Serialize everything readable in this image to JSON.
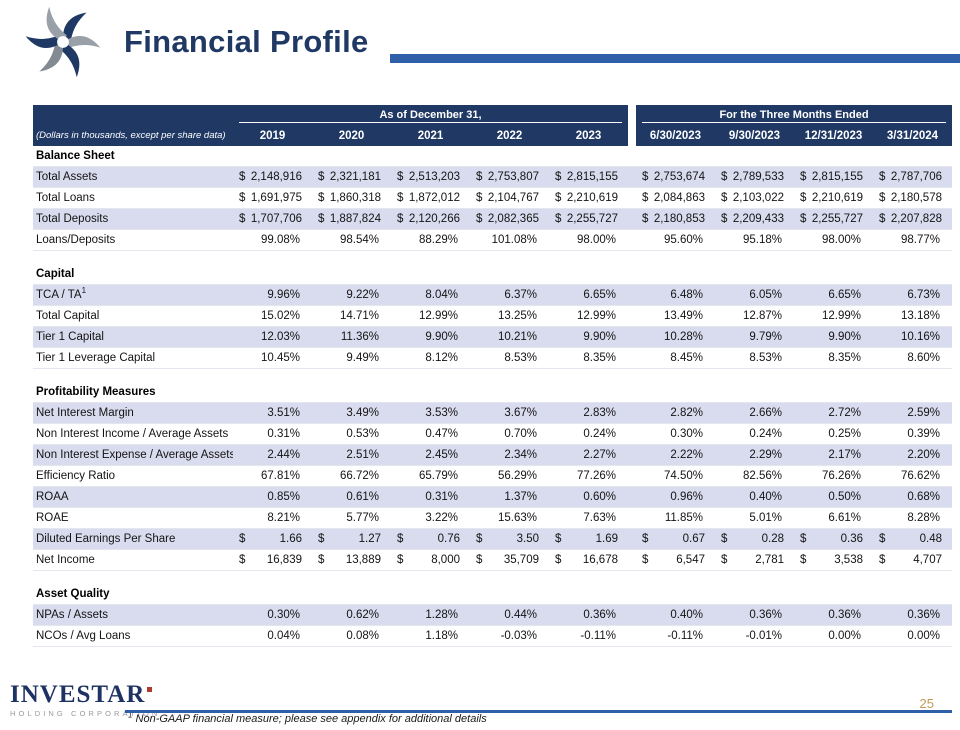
{
  "slide": {
    "title": "Financial Profile",
    "page_number": "25"
  },
  "footer": {
    "logo_text": "INVESTAR",
    "logo_sub": "HOLDING CORPORATION",
    "footnote_sup": "1",
    "footnote_text": "Non-GAAP financial measure; please see appendix for additional details"
  },
  "colors": {
    "header_navy": "#1f3864",
    "accent_blue": "#2e5fa8",
    "row_stripe": "#d9dbee",
    "page_number_gold": "#bf9b56",
    "logo_red": "#b03a2e",
    "logo_gray": "#97999d",
    "logo_navy": "#1e3263"
  },
  "table": {
    "unit_note": "(Dollars in thousands, except per share data)",
    "groups": [
      {
        "label": "As of December 31,",
        "columns": [
          "2019",
          "2020",
          "2021",
          "2022",
          "2023"
        ]
      },
      {
        "label": "For the Three Months Ended",
        "columns": [
          "6/30/2023",
          "9/30/2023",
          "12/31/2023",
          "3/31/2024"
        ]
      }
    ],
    "sections": [
      {
        "name": "Balance Sheet",
        "rows": [
          {
            "label": "Total Assets",
            "format": "dollar",
            "values": [
              "2,148,916",
              "2,321,181",
              "2,513,203",
              "2,753,807",
              "2,815,155",
              "2,753,674",
              "2,789,533",
              "2,815,155",
              "2,787,706"
            ]
          },
          {
            "label": "Total Loans",
            "format": "dollar",
            "values": [
              "1,691,975",
              "1,860,318",
              "1,872,012",
              "2,104,767",
              "2,210,619",
              "2,084,863",
              "2,103,022",
              "2,210,619",
              "2,180,578"
            ]
          },
          {
            "label": "Total Deposits",
            "format": "dollar",
            "values": [
              "1,707,706",
              "1,887,824",
              "2,120,266",
              "2,082,365",
              "2,255,727",
              "2,180,853",
              "2,209,433",
              "2,255,727",
              "2,207,828"
            ]
          },
          {
            "label": "Loans/Deposits",
            "format": "plain",
            "values": [
              "99.08%",
              "98.54%",
              "88.29%",
              "101.08%",
              "98.00%",
              "95.60%",
              "95.18%",
              "98.00%",
              "98.77%"
            ]
          }
        ]
      },
      {
        "name": "Capital",
        "rows": [
          {
            "label": "TCA / TA",
            "label_sup": "1",
            "format": "plain",
            "values": [
              "9.96%",
              "9.22%",
              "8.04%",
              "6.37%",
              "6.65%",
              "6.48%",
              "6.05%",
              "6.65%",
              "6.73%"
            ]
          },
          {
            "label": "Total Capital",
            "format": "plain",
            "values": [
              "15.02%",
              "14.71%",
              "12.99%",
              "13.25%",
              "12.99%",
              "13.49%",
              "12.87%",
              "12.99%",
              "13.18%"
            ]
          },
          {
            "label": "Tier 1 Capital",
            "format": "plain",
            "values": [
              "12.03%",
              "11.36%",
              "9.90%",
              "10.21%",
              "9.90%",
              "10.28%",
              "9.79%",
              "9.90%",
              "10.16%"
            ]
          },
          {
            "label": "Tier 1 Leverage Capital",
            "format": "plain",
            "values": [
              "10.45%",
              "9.49%",
              "8.12%",
              "8.53%",
              "8.35%",
              "8.45%",
              "8.53%",
              "8.35%",
              "8.60%"
            ]
          }
        ]
      },
      {
        "name": "Profitability Measures",
        "rows": [
          {
            "label": "Net Interest Margin",
            "format": "plain",
            "values": [
              "3.51%",
              "3.49%",
              "3.53%",
              "3.67%",
              "2.83%",
              "2.82%",
              "2.66%",
              "2.72%",
              "2.59%"
            ]
          },
          {
            "label": "Non Interest Income / Average Assets",
            "format": "plain",
            "values": [
              "0.31%",
              "0.53%",
              "0.47%",
              "0.70%",
              "0.24%",
              "0.30%",
              "0.24%",
              "0.25%",
              "0.39%"
            ]
          },
          {
            "label": "Non Interest Expense / Average Assets",
            "format": "plain",
            "values": [
              "2.44%",
              "2.51%",
              "2.45%",
              "2.34%",
              "2.27%",
              "2.22%",
              "2.29%",
              "2.17%",
              "2.20%"
            ]
          },
          {
            "label": "Efficiency Ratio",
            "format": "plain",
            "values": [
              "67.81%",
              "66.72%",
              "65.79%",
              "56.29%",
              "77.26%",
              "74.50%",
              "82.56%",
              "76.26%",
              "76.62%"
            ]
          },
          {
            "label": "ROAA",
            "format": "plain",
            "values": [
              "0.85%",
              "0.61%",
              "0.31%",
              "1.37%",
              "0.60%",
              "0.96%",
              "0.40%",
              "0.50%",
              "0.68%"
            ]
          },
          {
            "label": "ROAE",
            "format": "plain",
            "values": [
              "8.21%",
              "5.77%",
              "3.22%",
              "15.63%",
              "7.63%",
              "11.85%",
              "5.01%",
              "6.61%",
              "8.28%"
            ]
          },
          {
            "label": "Diluted Earnings Per Share",
            "format": "dollar",
            "values": [
              "1.66",
              "1.27",
              "0.76",
              "3.50",
              "1.69",
              "0.67",
              "0.28",
              "0.36",
              "0.48"
            ]
          },
          {
            "label": "Net Income",
            "format": "dollar",
            "values": [
              "16,839",
              "13,889",
              "8,000",
              "35,709",
              "16,678",
              "6,547",
              "2,781",
              "3,538",
              "4,707"
            ]
          }
        ]
      },
      {
        "name": "Asset Quality",
        "rows": [
          {
            "label": "NPAs / Assets",
            "format": "plain",
            "values": [
              "0.30%",
              "0.62%",
              "1.28%",
              "0.44%",
              "0.36%",
              "0.40%",
              "0.36%",
              "0.36%",
              "0.36%"
            ]
          },
          {
            "label": "NCOs / Avg Loans",
            "format": "plain",
            "values": [
              "0.04%",
              "0.08%",
              "1.18%",
              "-0.03%",
              "-0.11%",
              "-0.11%",
              "-0.01%",
              "0.00%",
              "0.00%"
            ]
          }
        ]
      }
    ]
  }
}
